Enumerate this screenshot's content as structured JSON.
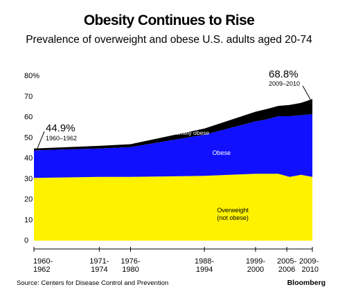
{
  "title": "Obesity Continues to Rise",
  "subtitle": "Prevalence of overweight and obese U.S. adults aged 20-74",
  "source": "Source: Centers for Disease Control and Prevention",
  "brand": "Bloomberg",
  "colors": {
    "overweight": "#fff200",
    "obese": "#1010ff",
    "extremely_obese": "#000000",
    "axis": "#000000"
  },
  "chart_data": {
    "type": "area",
    "stacked": true,
    "x": [
      1961,
      1972.5,
      1978,
      1991,
      2000,
      2002,
      2004,
      2006,
      2008,
      2010
    ],
    "x_label_positions": [
      1961,
      1972.5,
      1978,
      1991,
      2000,
      2005.5,
      2010
    ],
    "x_tick_labels": [
      [
        "1960-",
        "1962"
      ],
      [
        "1971-",
        "1974"
      ],
      [
        "1976-",
        "1980"
      ],
      [
        "1988-",
        "1994"
      ],
      [
        "1999-",
        "2000"
      ],
      [
        "2005-",
        "2006"
      ],
      [
        "2009-",
        "2010"
      ]
    ],
    "ylim": [
      0,
      80
    ],
    "y_ticks": [
      0,
      10,
      20,
      30,
      40,
      50,
      60,
      70,
      80
    ],
    "y_tick_labels": [
      "0",
      "10",
      "20",
      "30",
      "40",
      "50",
      "60",
      "70",
      "80%"
    ],
    "series": [
      {
        "name": "Overweight\n(not obese)",
        "label_lines": [
          "Overweight",
          "(not obese)"
        ],
        "key": "overweight",
        "values": [
          30.5,
          31.0,
          31.0,
          31.5,
          32.5,
          32.5,
          32.5,
          31.0,
          32.0,
          31.0
        ]
      },
      {
        "name": "Obese",
        "label_lines": [
          "Obese"
        ],
        "key": "obese",
        "values": [
          13.4,
          13.8,
          14.5,
          20.0,
          25.5,
          26.5,
          28.0,
          29.5,
          29.0,
          30.5
        ]
      },
      {
        "name": "Extremely obese",
        "label_lines": [
          "Extremely obese"
        ],
        "key": "extremely_obese",
        "values": [
          0.9,
          1.3,
          1.4,
          3.0,
          4.7,
          5.0,
          5.0,
          5.5,
          6.0,
          7.3
        ]
      }
    ],
    "annotations": [
      {
        "value": "44.9%",
        "period": "1960–1962",
        "x": 1961,
        "y": 44.9
      },
      {
        "value": "68.8%",
        "period": "2009–2010",
        "x": 2010,
        "y": 68.8
      }
    ]
  }
}
